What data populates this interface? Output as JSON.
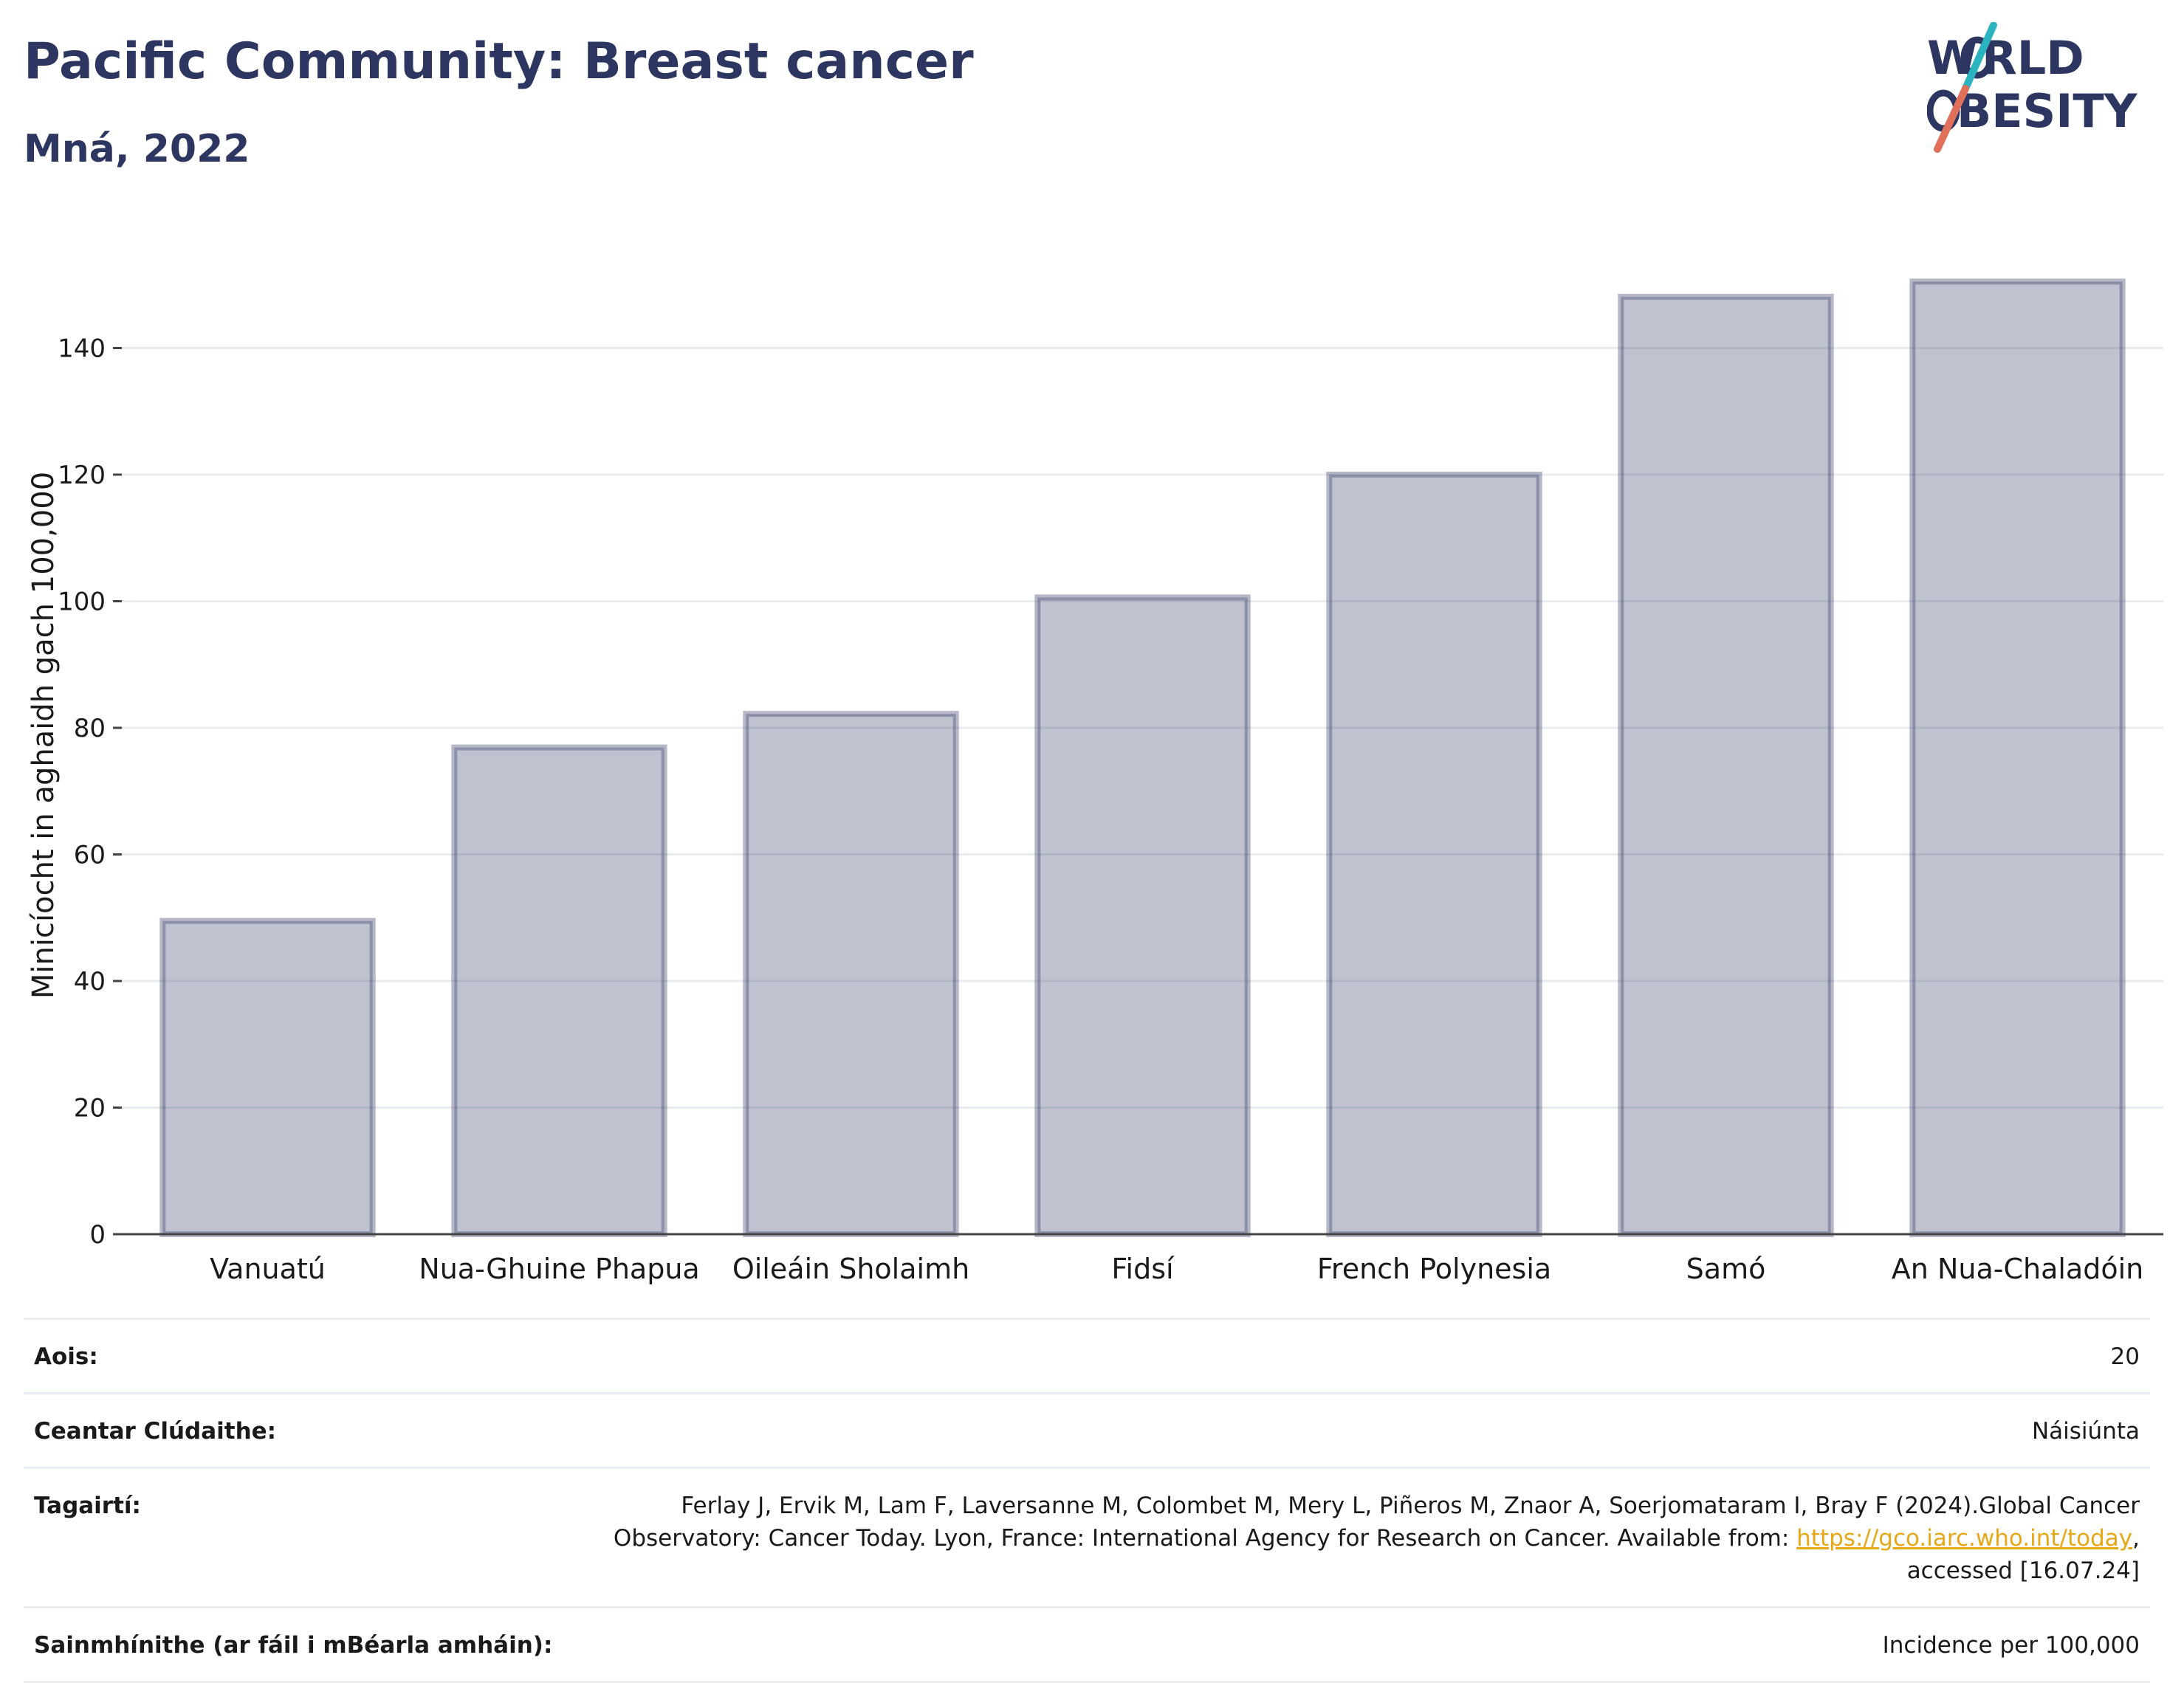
{
  "header": {
    "title": "Pacific Community: Breast cancer",
    "subtitle": "Mná, 2022",
    "logo_text": "WORLD OBESITY"
  },
  "chart_data": {
    "type": "bar",
    "title": "Pacific Community: Breast cancer",
    "subtitle": "Mná, 2022",
    "xlabel": "",
    "ylabel": "Minicíocht in aghaidh gach 100,000",
    "categories": [
      "Vanuatú",
      "Nua-Ghuine Phapua",
      "Oileáin Sholaimh",
      "Fidsí",
      "French Polynesia",
      "Samó",
      "An Nua-Chaladóin"
    ],
    "values": [
      49.5,
      76.9,
      82.2,
      100.6,
      120.0,
      148.1,
      150.5
    ],
    "ylim": [
      0,
      160
    ],
    "yticks": [
      0,
      20,
      40,
      60,
      80,
      100,
      120,
      140
    ],
    "grid": true,
    "legend": "none",
    "bar_color": "#2d3561"
  },
  "meta": {
    "rows": [
      {
        "label": "Aois:",
        "value": "20"
      },
      {
        "label": "Ceantar Clúdaithe:",
        "value": "Náisiúnta"
      },
      {
        "label": "Tagairtí:",
        "value_pre": "Ferlay J, Ervik M, Lam F, Laversanne M, Colombet M, Mery L, Piñeros M, Znaor A, Soerjomataram I, Bray F (2024).Global Cancer Observatory: Cancer Today. Lyon, France: International Agency for Research on Cancer. Available from: ",
        "link": "https://gco.iarc.who.int/today",
        "value_post": ", accessed [16.07.24]"
      },
      {
        "label": "Sainmhínithe (ar fáil i mBéarla amháin):",
        "value": "Incidence per 100,000"
      }
    ]
  },
  "colors": {
    "title": "#2d3561",
    "bar": "#2d3561",
    "link": "#e6a817",
    "logo_teal": "#2bb3c0",
    "logo_coral": "#e0705a"
  }
}
